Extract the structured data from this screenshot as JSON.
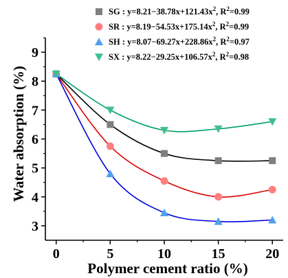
{
  "chart_data": {
    "type": "scatter",
    "xlabel": "Polymer cement ratio (%)",
    "ylabel": "Water absorption (%)",
    "xlim": [
      -1,
      21
    ],
    "ylim": [
      2.5,
      9.5
    ],
    "xticks": [
      0,
      5,
      10,
      15,
      20
    ],
    "yticks": [
      3,
      4,
      5,
      6,
      7,
      8,
      9
    ],
    "legend_position": "top-right",
    "series": [
      {
        "name": "SG",
        "label_prefix": "SG : y=8.21−38.78x+121.43x",
        "label_r2": ", R",
        "label_r2_value": "=0.99",
        "marker": "square",
        "marker_color": "#7f7f7f",
        "line_color": "#000000",
        "x": [
          0,
          5,
          10,
          15,
          20
        ],
        "y": [
          8.25,
          6.5,
          5.5,
          5.25,
          5.25
        ],
        "fit": [
          8.21,
          -38.78,
          121.43
        ]
      },
      {
        "name": "SR",
        "label_prefix": "SR : y=8.19−54.53x+175.14x",
        "label_r2": ", R",
        "label_r2_value": "=0.99",
        "marker": "circle",
        "marker_color": "#ff7f7f",
        "line_color": "#e00000",
        "x": [
          0,
          5,
          10,
          15,
          20
        ],
        "y": [
          8.25,
          5.75,
          4.55,
          4.0,
          4.25
        ],
        "fit": [
          8.19,
          -54.53,
          175.14
        ]
      },
      {
        "name": "SH",
        "label_prefix": "SH : y=8.07−69.27x+228.86x",
        "label_r2": ", R",
        "label_r2_value": "=0.97",
        "marker": "triangle-up",
        "marker_color": "#4f9fef",
        "line_color": "#0000dd",
        "x": [
          0,
          5,
          10,
          15,
          20
        ],
        "y": [
          8.25,
          4.8,
          3.45,
          3.15,
          3.2
        ],
        "fit": [
          8.07,
          -69.27,
          228.86
        ]
      },
      {
        "name": "SX",
        "label_prefix": "SX : y=8.22−29.25x+106.57x",
        "label_r2": ", R",
        "label_r2_value": "=0.98",
        "marker": "triangle-down",
        "marker_color": "#3fbf8f",
        "line_color": "#00a060",
        "x": [
          0,
          5,
          10,
          15,
          20
        ],
        "y": [
          8.25,
          7.0,
          6.3,
          6.35,
          6.6
        ],
        "fit": [
          8.22,
          -29.25,
          106.57
        ]
      }
    ],
    "superscript": "2"
  }
}
